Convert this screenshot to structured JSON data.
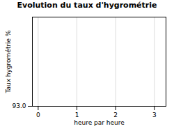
{
  "chart_data": {
    "type": "line",
    "title": "Evolution du taux d'hygrométrie",
    "xlabel": "heure par heure",
    "ylabel": "Taux hygrométrie %",
    "xlim": [
      -0.15,
      3.3
    ],
    "ylim": [
      93.0,
      97.5
    ],
    "xticks": [
      0,
      1,
      2,
      3
    ],
    "yticks": [
      {
        "value": 93.0,
        "label": "93.0"
      }
    ],
    "grid": true
  }
}
